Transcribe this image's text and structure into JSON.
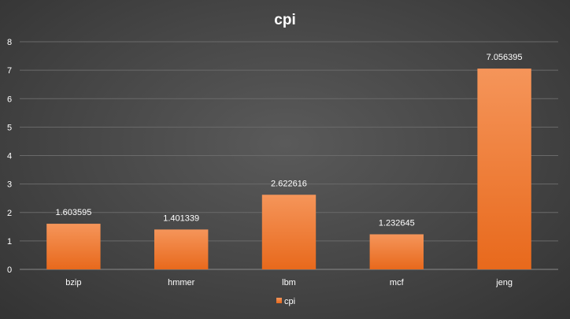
{
  "chart_data": {
    "type": "bar",
    "title": "cpi",
    "categories": [
      "bzip",
      "hmmer",
      "lbm",
      "mcf",
      "jeng"
    ],
    "series": [
      {
        "name": "cpi",
        "values": [
          1.603595,
          1.401339,
          2.622616,
          1.232645,
          7.056395
        ]
      }
    ],
    "data_labels": [
      "1.603595",
      "1.401339",
      "2.622616",
      "1.232645",
      "7.056395"
    ],
    "yticks": [
      "0",
      "1",
      "2",
      "3",
      "4",
      "5",
      "6",
      "7",
      "8"
    ],
    "ylim": [
      0,
      8
    ],
    "grid": true,
    "legend": "bottom",
    "colors": {
      "bar_top": "#f5955a",
      "bar_bottom": "#e8691c"
    }
  }
}
